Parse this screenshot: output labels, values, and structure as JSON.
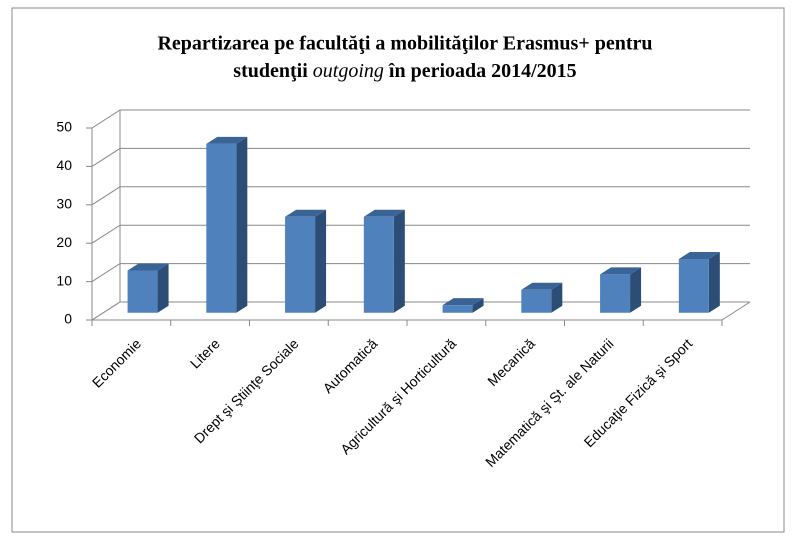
{
  "chart_data": {
    "type": "bar",
    "title": {
      "line1": "Repartizarea pe facultăţi  a mobilităţilor Erasmus+ pentru",
      "line2_before": "studenţii",
      "line2_italic": "outgoing",
      "line2_after": "în perioada 2014/2015"
    },
    "categories": [
      "Economie",
      "Litere",
      "Drept şi Ştiinţe Sociale",
      "Automatică",
      "Agricultură şi Horticultură",
      "Mecanică",
      "Matematică şi Şt. ale Naturii",
      "Educaţie Fizică şi Sport"
    ],
    "values": [
      11,
      44,
      25,
      25,
      2,
      6,
      10,
      14
    ],
    "color": "#4f81bd",
    "ylim": [
      0,
      50
    ],
    "yticks": [
      0,
      10,
      20,
      30,
      40,
      50
    ],
    "grid": true
  }
}
